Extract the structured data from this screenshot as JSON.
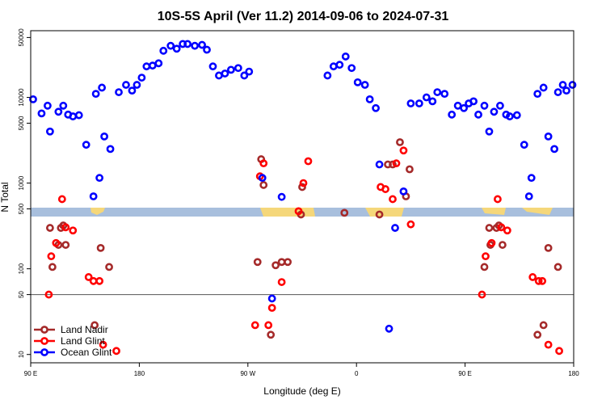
{
  "chart_data": {
    "type": "scatter",
    "title": "10S-5S April (Ver 11.2)   2014-09-06 to 2024-07-31",
    "xlabel": "Longitude (deg E)",
    "ylabel": "N Total",
    "x_ticks": [
      {
        "value": 90,
        "label": "90 E"
      },
      {
        "value": 180,
        "label": "180"
      },
      {
        "value": 270,
        "label": "90 W"
      },
      {
        "value": 360,
        "label": "0"
      },
      {
        "value": 450,
        "label": "90 E"
      },
      {
        "value": 540,
        "label": "180"
      }
    ],
    "y_ticks": [
      10,
      50,
      100,
      500,
      1000,
      5000,
      10000,
      50000
    ],
    "xlim": [
      90,
      540
    ],
    "ylim": [
      8,
      60000
    ],
    "y_scale": "log",
    "reference_line": 50,
    "legend_position": "bottom-left",
    "colors": {
      "land_nadir": "#a52a2a",
      "land_glint": "#ff0000",
      "ocean_glint": "#0000ff",
      "band_ocean": "#a8bfdd",
      "band_land": "#f5d77a"
    },
    "series": [
      {
        "name": "Land Nadir",
        "color": "#a52a2a",
        "points": [
          [
            106,
            300
          ],
          [
            108,
            105
          ],
          [
            113,
            190
          ],
          [
            115,
            300
          ],
          [
            117,
            320
          ],
          [
            119,
            190
          ],
          [
            143,
            22
          ],
          [
            148,
            175
          ],
          [
            155,
            105
          ],
          [
            278,
            120
          ],
          [
            289,
            17
          ],
          [
            293,
            110
          ],
          [
            298,
            120
          ],
          [
            303,
            120
          ],
          [
            281,
            1900
          ],
          [
            283,
            950
          ],
          [
            314,
            430
          ],
          [
            315,
            900
          ],
          [
            350,
            450
          ],
          [
            379,
            430
          ],
          [
            386,
            1650
          ],
          [
            390,
            1650
          ],
          [
            396,
            3000
          ],
          [
            401,
            700
          ],
          [
            404,
            1450
          ],
          [
            466,
            105
          ],
          [
            470,
            300
          ],
          [
            471,
            190
          ],
          [
            476,
            300
          ],
          [
            478,
            320
          ],
          [
            481,
            190
          ],
          [
            510,
            17
          ],
          [
            515,
            22
          ],
          [
            519,
            175
          ],
          [
            527,
            105
          ]
        ]
      },
      {
        "name": "Land Glint",
        "color": "#ff0000",
        "points": [
          [
            105,
            50
          ],
          [
            107,
            140
          ],
          [
            111,
            200
          ],
          [
            116,
            650
          ],
          [
            119,
            305
          ],
          [
            125,
            280
          ],
          [
            138,
            80
          ],
          [
            142,
            72
          ],
          [
            147,
            72
          ],
          [
            150,
            13
          ],
          [
            161,
            11
          ],
          [
            280,
            1200
          ],
          [
            283,
            1700
          ],
          [
            276,
            22
          ],
          [
            287,
            22
          ],
          [
            290,
            35
          ],
          [
            298,
            70
          ],
          [
            312,
            470
          ],
          [
            316,
            1000
          ],
          [
            320,
            1800
          ],
          [
            380,
            900
          ],
          [
            384,
            850
          ],
          [
            390,
            650
          ],
          [
            393,
            1700
          ],
          [
            399,
            2400
          ],
          [
            405,
            330
          ],
          [
            464,
            50
          ],
          [
            467,
            140
          ],
          [
            472,
            200
          ],
          [
            477,
            650
          ],
          [
            480,
            305
          ],
          [
            485,
            280
          ],
          [
            506,
            80
          ],
          [
            511,
            72
          ],
          [
            514,
            72
          ],
          [
            519,
            13
          ],
          [
            528,
            11
          ]
        ]
      },
      {
        "name": "Ocean Glint",
        "color": "#0000ff",
        "points": [
          [
            92,
            9500
          ],
          [
            99,
            6500
          ],
          [
            104,
            8000
          ],
          [
            106,
            4000
          ],
          [
            113,
            6800
          ],
          [
            117,
            8000
          ],
          [
            121,
            6300
          ],
          [
            125,
            6000
          ],
          [
            130,
            6200
          ],
          [
            136,
            2800
          ],
          [
            144,
            11000
          ],
          [
            149,
            13000
          ],
          [
            151,
            3500
          ],
          [
            156,
            2500
          ],
          [
            142,
            700
          ],
          [
            147,
            1150
          ],
          [
            163,
            11500
          ],
          [
            169,
            14000
          ],
          [
            174,
            12000
          ],
          [
            178,
            14000
          ],
          [
            182,
            17000
          ],
          [
            186,
            23000
          ],
          [
            191,
            23500
          ],
          [
            196,
            25000
          ],
          [
            200,
            35000
          ],
          [
            206,
            40000
          ],
          [
            211,
            37000
          ],
          [
            216,
            42000
          ],
          [
            220,
            42000
          ],
          [
            226,
            40000
          ],
          [
            232,
            41000
          ],
          [
            236,
            36000
          ],
          [
            241,
            23000
          ],
          [
            246,
            18000
          ],
          [
            251,
            19000
          ],
          [
            256,
            21000
          ],
          [
            262,
            22000
          ],
          [
            267,
            18000
          ],
          [
            271,
            20000
          ],
          [
            282,
            1150
          ],
          [
            290,
            45
          ],
          [
            298,
            690
          ],
          [
            336,
            18000
          ],
          [
            341,
            23000
          ],
          [
            346,
            24000
          ],
          [
            351,
            30000
          ],
          [
            356,
            22000
          ],
          [
            361,
            15000
          ],
          [
            367,
            14000
          ],
          [
            371,
            9500
          ],
          [
            376,
            7500
          ],
          [
            379,
            1650
          ],
          [
            387,
            20
          ],
          [
            392,
            300
          ],
          [
            399,
            800
          ],
          [
            405,
            8500
          ],
          [
            412,
            8500
          ],
          [
            418,
            10000
          ],
          [
            423,
            9000
          ],
          [
            427,
            11500
          ],
          [
            433,
            11000
          ],
          [
            439,
            6300
          ],
          [
            444,
            8000
          ],
          [
            449,
            7500
          ],
          [
            453,
            8500
          ],
          [
            457,
            9000
          ],
          [
            461,
            6300
          ],
          [
            466,
            8000
          ],
          [
            470,
            4000
          ],
          [
            474,
            6800
          ],
          [
            479,
            8000
          ],
          [
            484,
            6300
          ],
          [
            487,
            6000
          ],
          [
            493,
            6200
          ],
          [
            499,
            2800
          ],
          [
            503,
            700
          ],
          [
            505,
            1150
          ],
          [
            510,
            11000
          ],
          [
            515,
            13000
          ],
          [
            519,
            3500
          ],
          [
            524,
            2500
          ],
          [
            527,
            11500
          ],
          [
            531,
            14000
          ],
          [
            534,
            12000
          ],
          [
            539,
            14000
          ]
        ]
      }
    ]
  }
}
